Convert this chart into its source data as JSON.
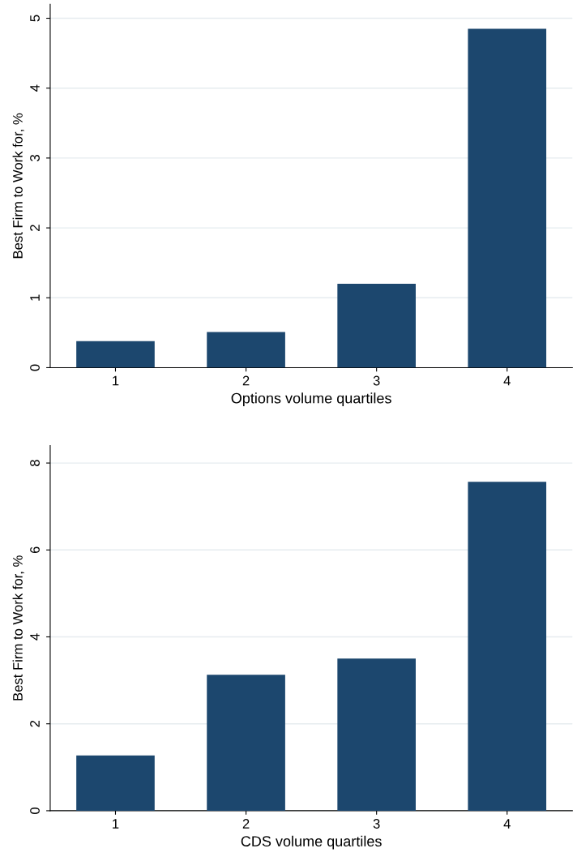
{
  "chart_data": [
    {
      "type": "bar",
      "xlabel": "Options volume quartiles",
      "ylabel": "Best Firm to Work for, %",
      "categories": [
        "1",
        "2",
        "3",
        "4"
      ],
      "values": [
        0.38,
        0.51,
        1.2,
        4.85
      ],
      "color": "#1c476e",
      "ylim": [
        0,
        5.2
      ],
      "yticks": [
        0,
        1,
        2,
        3,
        4,
        5
      ],
      "grid": "y"
    },
    {
      "type": "bar",
      "xlabel": "CDS volume quartiles",
      "ylabel": "Best Firm to Work for, %",
      "categories": [
        "1",
        "2",
        "3",
        "4"
      ],
      "values": [
        1.27,
        3.13,
        3.5,
        7.57
      ],
      "color": "#1c476e",
      "ylim": [
        0,
        8.4
      ],
      "yticks": [
        0,
        2,
        4,
        6,
        8
      ],
      "grid": "y"
    }
  ]
}
